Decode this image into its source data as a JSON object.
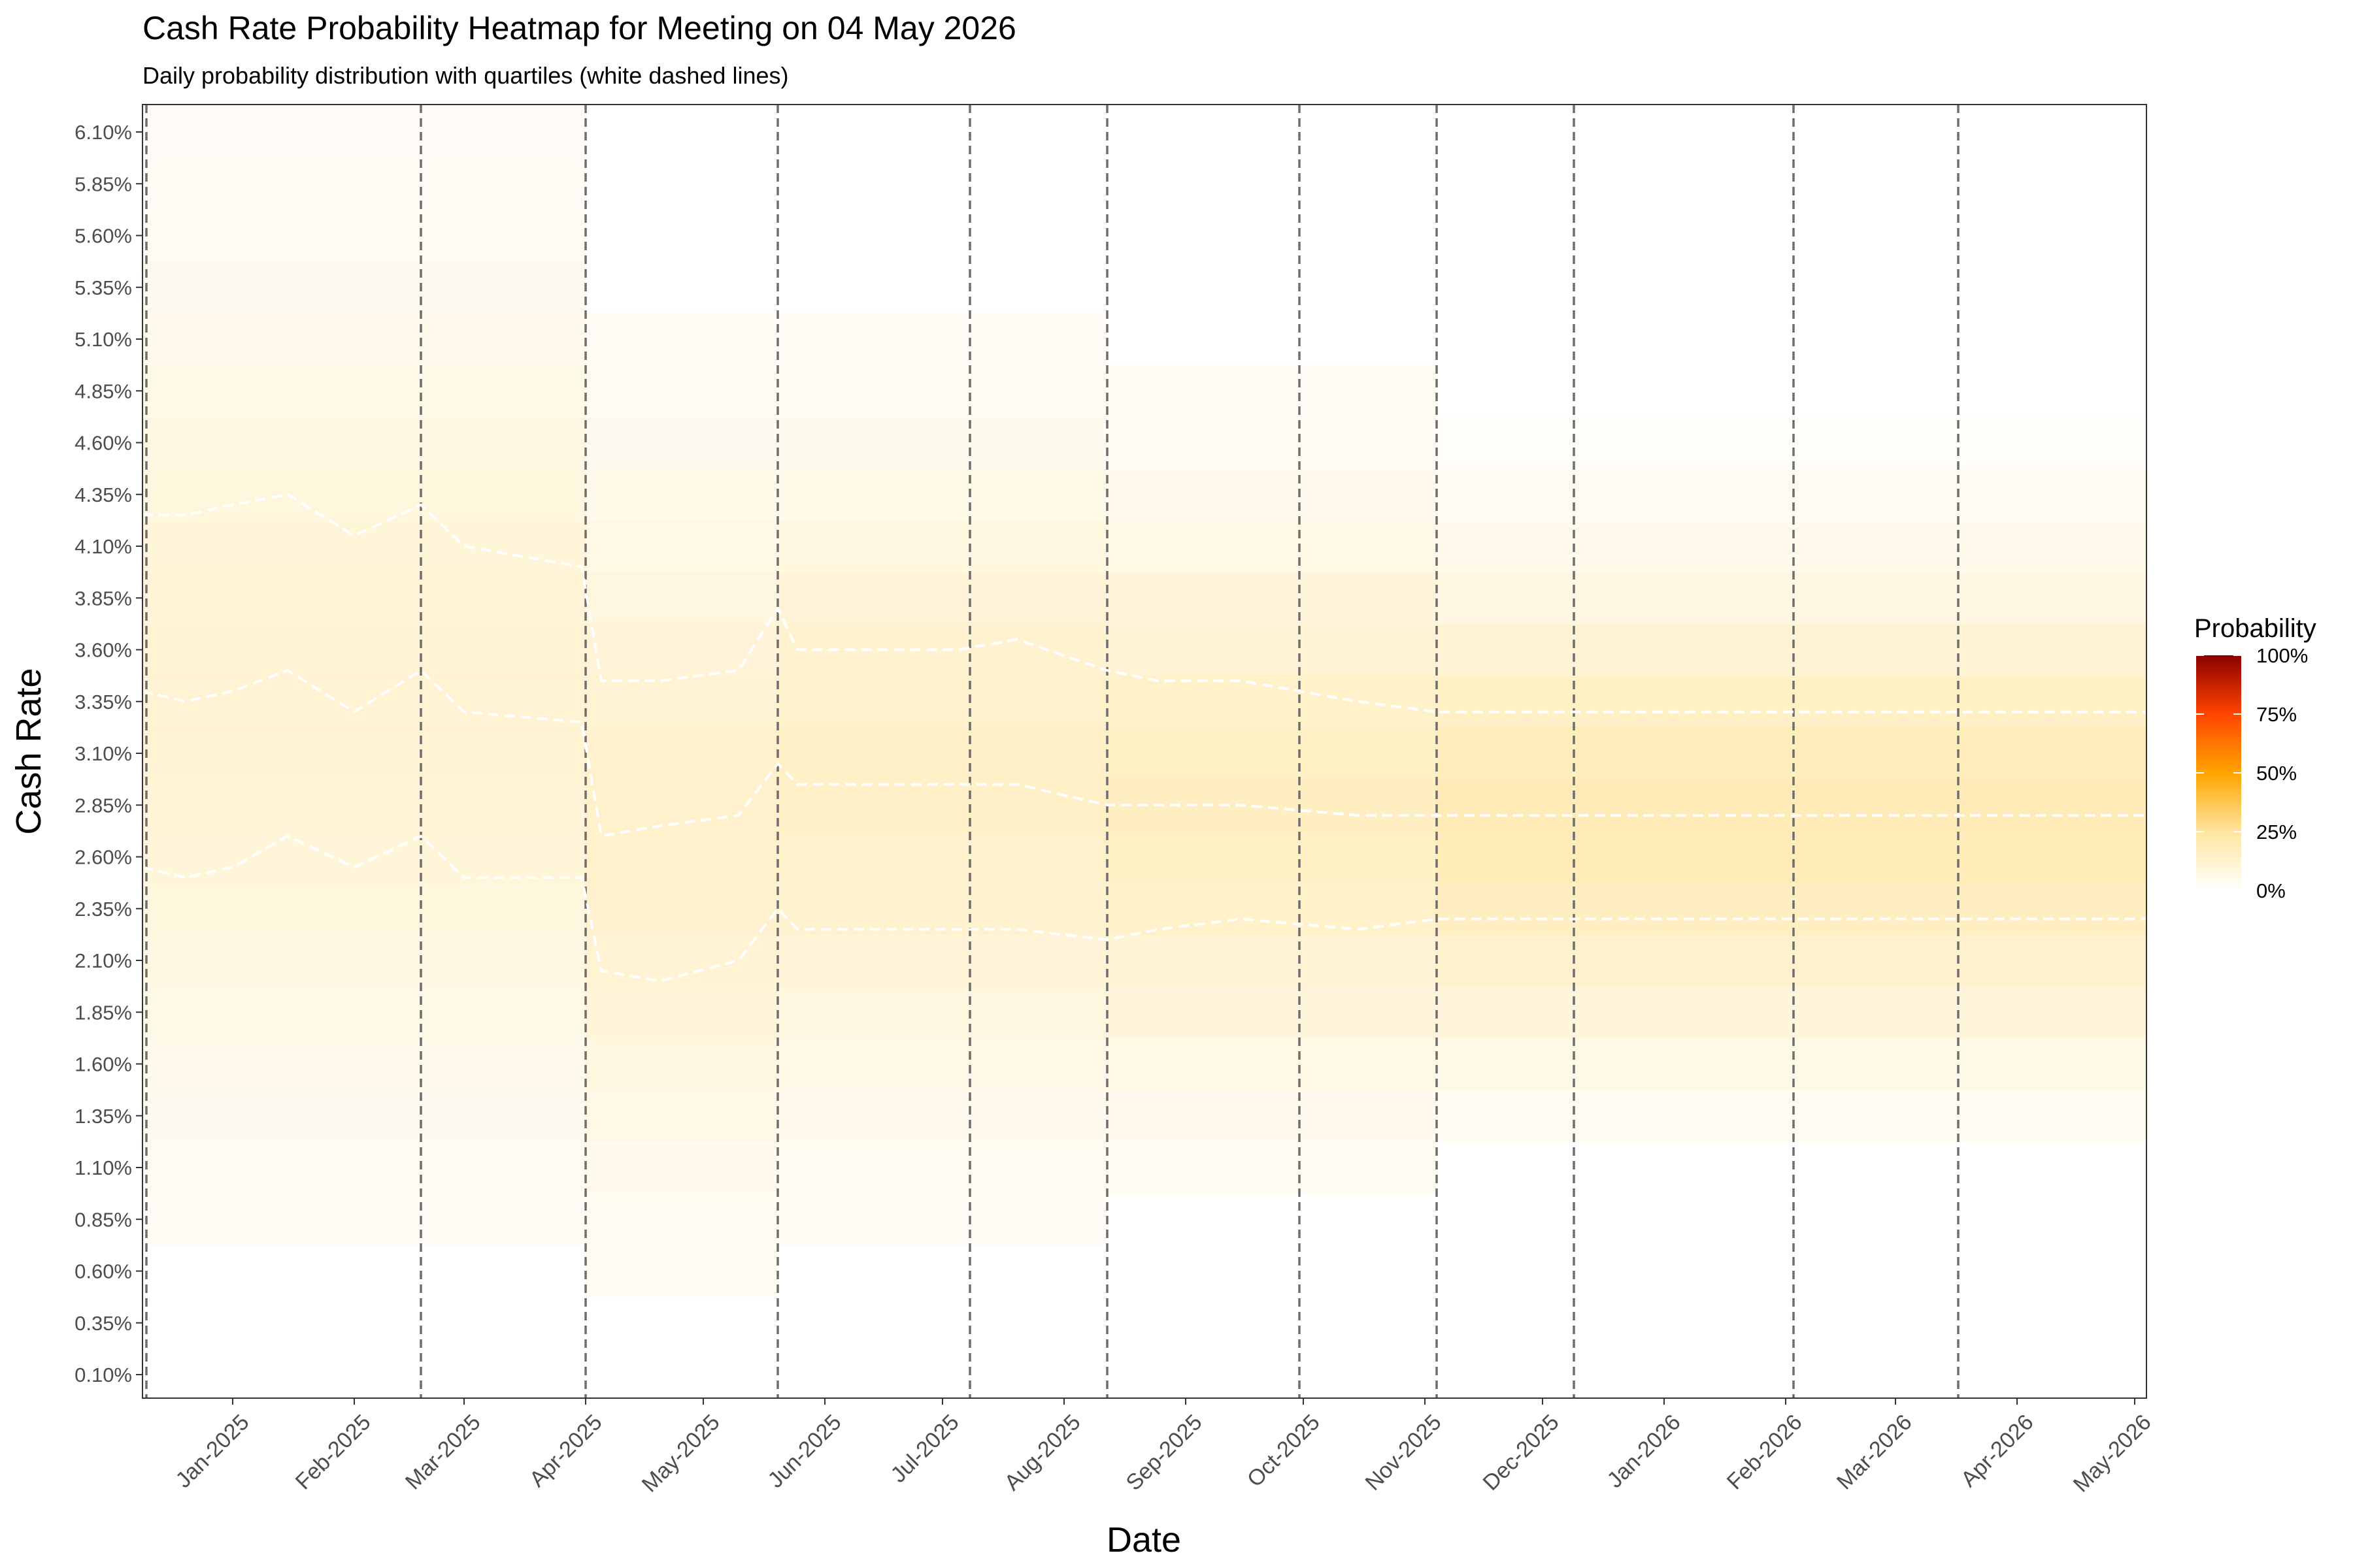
{
  "chart_data": {
    "type": "heatmap",
    "title": "Cash Rate Probability Heatmap for Meeting on 04 May 2026",
    "subtitle": "Daily probability distribution with quartiles (white dashed lines)",
    "xlabel": "Date",
    "ylabel": "Cash Rate",
    "x_range": [
      "2024-12-09",
      "2026-05-04"
    ],
    "y_range": [
      0.1,
      6.1
    ],
    "x_ticks": [
      {
        "date": "2025-01-01",
        "label": "Jan-2025"
      },
      {
        "date": "2025-02-01",
        "label": "Feb-2025"
      },
      {
        "date": "2025-03-01",
        "label": "Mar-2025"
      },
      {
        "date": "2025-04-01",
        "label": "Apr-2025"
      },
      {
        "date": "2025-05-01",
        "label": "May-2025"
      },
      {
        "date": "2025-06-01",
        "label": "Jun-2025"
      },
      {
        "date": "2025-07-01",
        "label": "Jul-2025"
      },
      {
        "date": "2025-08-01",
        "label": "Aug-2025"
      },
      {
        "date": "2025-09-01",
        "label": "Sep-2025"
      },
      {
        "date": "2025-10-01",
        "label": "Oct-2025"
      },
      {
        "date": "2025-11-01",
        "label": "Nov-2025"
      },
      {
        "date": "2025-12-01",
        "label": "Dec-2025"
      },
      {
        "date": "2026-01-01",
        "label": "Jan-2026"
      },
      {
        "date": "2026-02-01",
        "label": "Feb-2026"
      },
      {
        "date": "2026-03-01",
        "label": "Mar-2026"
      },
      {
        "date": "2026-04-01",
        "label": "Apr-2026"
      },
      {
        "date": "2026-05-01",
        "label": "May-2026"
      }
    ],
    "y_ticks": [
      {
        "value": 0.1,
        "label": "0.10%"
      },
      {
        "value": 0.35,
        "label": "0.35%"
      },
      {
        "value": 0.6,
        "label": "0.60%"
      },
      {
        "value": 0.85,
        "label": "0.85%"
      },
      {
        "value": 1.1,
        "label": "1.10%"
      },
      {
        "value": 1.35,
        "label": "1.35%"
      },
      {
        "value": 1.6,
        "label": "1.60%"
      },
      {
        "value": 1.85,
        "label": "1.85%"
      },
      {
        "value": 2.1,
        "label": "2.10%"
      },
      {
        "value": 2.35,
        "label": "2.35%"
      },
      {
        "value": 2.6,
        "label": "2.60%"
      },
      {
        "value": 2.85,
        "label": "2.85%"
      },
      {
        "value": 3.1,
        "label": "3.10%"
      },
      {
        "value": 3.35,
        "label": "3.35%"
      },
      {
        "value": 3.6,
        "label": "3.60%"
      },
      {
        "value": 3.85,
        "label": "3.85%"
      },
      {
        "value": 4.1,
        "label": "4.10%"
      },
      {
        "value": 4.35,
        "label": "4.35%"
      },
      {
        "value": 4.6,
        "label": "4.60%"
      },
      {
        "value": 4.85,
        "label": "4.85%"
      },
      {
        "value": 5.1,
        "label": "5.10%"
      },
      {
        "value": 5.35,
        "label": "5.35%"
      },
      {
        "value": 5.6,
        "label": "5.60%"
      },
      {
        "value": 5.85,
        "label": "5.85%"
      },
      {
        "value": 6.1,
        "label": "6.10%"
      }
    ],
    "meeting_dates": [
      "2024-12-10",
      "2025-02-18",
      "2025-04-01",
      "2025-05-20",
      "2025-07-08",
      "2025-08-12",
      "2025-09-30",
      "2025-11-04",
      "2025-12-09",
      "2026-02-03",
      "2026-03-17"
    ],
    "quartiles": [
      {
        "name": "Q1",
        "points": [
          [
            "2024-12-09",
            2.55
          ],
          [
            "2024-12-20",
            2.5
          ],
          [
            "2025-01-01",
            2.55
          ],
          [
            "2025-01-15",
            2.7
          ],
          [
            "2025-02-01",
            2.55
          ],
          [
            "2025-02-18",
            2.7
          ],
          [
            "2025-03-01",
            2.5
          ],
          [
            "2025-03-31",
            2.5
          ],
          [
            "2025-04-05",
            2.05
          ],
          [
            "2025-04-20",
            2.0
          ],
          [
            "2025-05-10",
            2.1
          ],
          [
            "2025-05-20",
            2.35
          ],
          [
            "2025-05-25",
            2.25
          ],
          [
            "2025-07-05",
            2.25
          ],
          [
            "2025-07-20",
            2.25
          ],
          [
            "2025-08-12",
            2.2
          ],
          [
            "2025-08-25",
            2.25
          ],
          [
            "2025-09-15",
            2.3
          ],
          [
            "2025-10-15",
            2.25
          ],
          [
            "2025-11-04",
            2.3
          ],
          [
            "2026-05-04",
            2.3
          ]
        ]
      },
      {
        "name": "Median",
        "points": [
          [
            "2024-12-09",
            3.4
          ],
          [
            "2024-12-20",
            3.35
          ],
          [
            "2025-01-01",
            3.4
          ],
          [
            "2025-01-15",
            3.5
          ],
          [
            "2025-02-01",
            3.3
          ],
          [
            "2025-02-18",
            3.5
          ],
          [
            "2025-03-01",
            3.3
          ],
          [
            "2025-03-31",
            3.25
          ],
          [
            "2025-04-05",
            2.7
          ],
          [
            "2025-04-20",
            2.75
          ],
          [
            "2025-05-10",
            2.8
          ],
          [
            "2025-05-20",
            3.05
          ],
          [
            "2025-05-25",
            2.95
          ],
          [
            "2025-07-05",
            2.95
          ],
          [
            "2025-07-20",
            2.95
          ],
          [
            "2025-08-12",
            2.85
          ],
          [
            "2025-08-25",
            2.85
          ],
          [
            "2025-09-15",
            2.85
          ],
          [
            "2025-10-15",
            2.8
          ],
          [
            "2025-11-04",
            2.8
          ],
          [
            "2026-05-04",
            2.8
          ]
        ]
      },
      {
        "name": "Q3",
        "points": [
          [
            "2024-12-09",
            4.25
          ],
          [
            "2024-12-20",
            4.25
          ],
          [
            "2025-01-01",
            4.3
          ],
          [
            "2025-01-15",
            4.35
          ],
          [
            "2025-02-01",
            4.15
          ],
          [
            "2025-02-18",
            4.3
          ],
          [
            "2025-03-01",
            4.1
          ],
          [
            "2025-03-31",
            4.0
          ],
          [
            "2025-04-05",
            3.45
          ],
          [
            "2025-04-20",
            3.45
          ],
          [
            "2025-05-10",
            3.5
          ],
          [
            "2025-05-20",
            3.8
          ],
          [
            "2025-05-25",
            3.6
          ],
          [
            "2025-07-05",
            3.6
          ],
          [
            "2025-07-20",
            3.65
          ],
          [
            "2025-08-12",
            3.5
          ],
          [
            "2025-08-25",
            3.45
          ],
          [
            "2025-09-15",
            3.45
          ],
          [
            "2025-10-15",
            3.35
          ],
          [
            "2025-11-04",
            3.3
          ],
          [
            "2026-05-04",
            3.3
          ]
        ]
      }
    ],
    "heat_segments": [
      {
        "start": "2024-12-09",
        "end": "2025-04-01",
        "mean": 3.35,
        "sd": 1.3,
        "min": 0.8,
        "max": 6.1
      },
      {
        "start": "2025-04-01",
        "end": "2025-05-20",
        "mean": 2.75,
        "sd": 1.1,
        "min": 0.55,
        "max": 5.2
      },
      {
        "start": "2025-05-20",
        "end": "2025-08-12",
        "mean": 2.95,
        "sd": 1.0,
        "min": 0.75,
        "max": 5.2
      },
      {
        "start": "2025-08-12",
        "end": "2025-11-04",
        "mean": 2.85,
        "sd": 0.9,
        "min": 1.0,
        "max": 4.95
      },
      {
        "start": "2025-11-04",
        "end": "2026-05-04",
        "mean": 2.8,
        "sd": 0.75,
        "min": 1.25,
        "max": 4.7
      }
    ],
    "legend": {
      "title": "Probability",
      "position": "right",
      "colorbar": [
        {
          "value": 1.0,
          "label": "100%"
        },
        {
          "value": 0.75,
          "label": "75%"
        },
        {
          "value": 0.5,
          "label": "50%"
        },
        {
          "value": 0.25,
          "label": "25%"
        },
        {
          "value": 0.0,
          "label": "0%"
        }
      ],
      "colors": [
        "#ffffff",
        "#ffe5a0",
        "#ffa500",
        "#ff4500",
        "#8b0000"
      ]
    },
    "grid": false
  }
}
